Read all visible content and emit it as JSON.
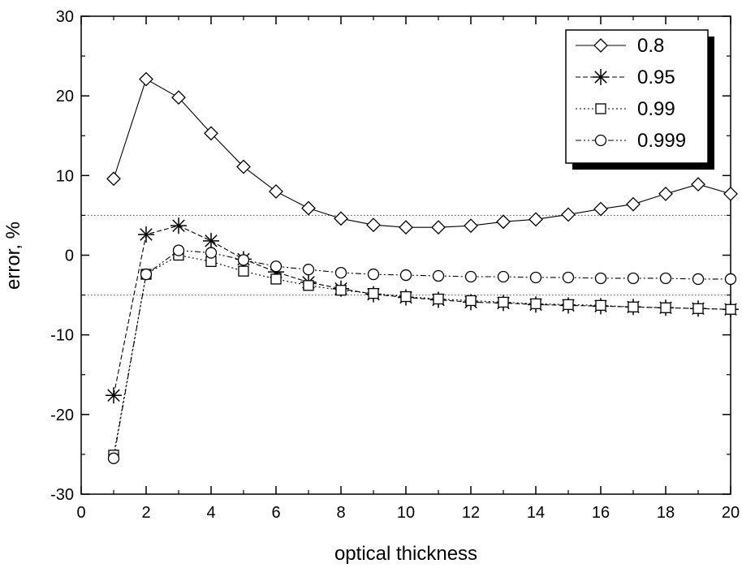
{
  "chart_data": {
    "type": "line",
    "xlabel": "optical thickness",
    "ylabel": "error, %",
    "xlim": [
      0,
      20
    ],
    "ylim": [
      -30,
      30
    ],
    "x_ticks": [
      0,
      2,
      4,
      6,
      8,
      10,
      12,
      14,
      16,
      18,
      20
    ],
    "y_ticks": [
      -30,
      -20,
      -10,
      0,
      10,
      20,
      30
    ],
    "x_tick_labels": [
      "0",
      "2",
      "4",
      "6",
      "8",
      "10",
      "12",
      "14",
      "16",
      "18",
      "20"
    ],
    "y_tick_labels": [
      "-30",
      "-20",
      "-10",
      "0",
      "10",
      "20",
      "30"
    ],
    "reference_lines": [
      5,
      -5
    ],
    "legend_position": "top-right",
    "x": [
      1,
      2,
      3,
      4,
      5,
      6,
      7,
      8,
      9,
      10,
      11,
      12,
      13,
      14,
      15,
      16,
      17,
      18,
      19,
      20
    ],
    "series": [
      {
        "name": "0.8",
        "marker": "diamond",
        "line_style": "solid",
        "values": [
          9.6,
          22.1,
          19.8,
          15.3,
          11.1,
          8.0,
          5.9,
          4.6,
          3.8,
          3.5,
          3.5,
          3.7,
          4.2,
          4.5,
          5.1,
          5.8,
          6.4,
          7.7,
          8.9,
          7.7
        ]
      },
      {
        "name": "0.95",
        "marker": "asterisk",
        "line_style": "dashed",
        "values": [
          -17.6,
          2.6,
          3.7,
          1.8,
          -0.5,
          -2.1,
          -3.4,
          -4.2,
          -4.9,
          -5.3,
          -5.6,
          -5.9,
          -6.0,
          -6.2,
          -6.3,
          -6.4,
          -6.5,
          -6.6,
          -6.7,
          -6.8
        ]
      },
      {
        "name": "0.99",
        "marker": "square",
        "line_style": "dotted",
        "values": [
          -25.1,
          -2.4,
          0.0,
          -0.8,
          -2.0,
          -3.0,
          -3.8,
          -4.4,
          -4.8,
          -5.2,
          -5.5,
          -5.7,
          -5.9,
          -6.1,
          -6.2,
          -6.3,
          -6.5,
          -6.6,
          -6.7,
          -6.8
        ]
      },
      {
        "name": "0.999",
        "marker": "circle",
        "line_style": "dash-dot-dot",
        "values": [
          -25.5,
          -2.4,
          0.6,
          0.3,
          -0.6,
          -1.4,
          -1.8,
          -2.2,
          -2.4,
          -2.5,
          -2.6,
          -2.7,
          -2.7,
          -2.8,
          -2.8,
          -2.9,
          -2.9,
          -2.9,
          -3.0,
          -3.0
        ]
      }
    ]
  }
}
